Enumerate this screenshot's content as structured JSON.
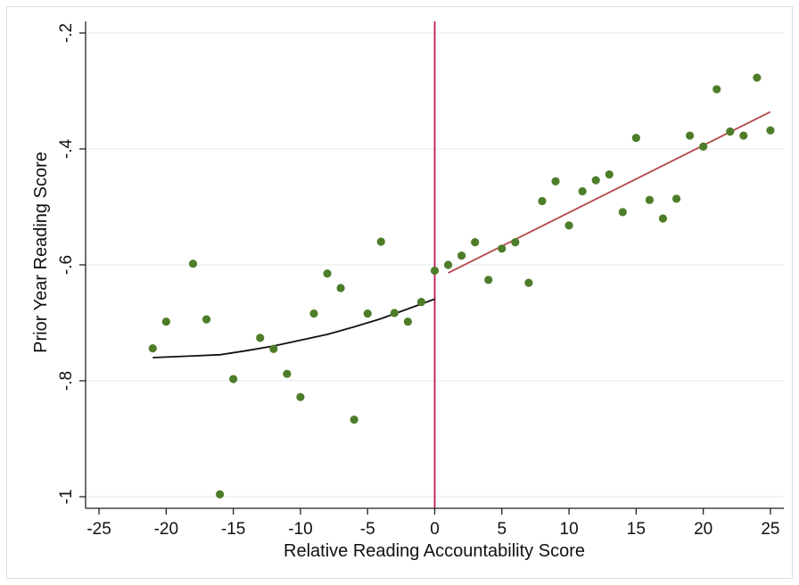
{
  "chart_data": {
    "type": "scatter",
    "title": "",
    "xlabel": "Relative Reading Accountability Score",
    "ylabel": "Prior Year Reading Score",
    "xlim": [
      -26,
      26
    ],
    "ylim": [
      -1.02,
      -0.18
    ],
    "x_ticks": [
      -25,
      -20,
      -15,
      -10,
      -5,
      0,
      5,
      10,
      15,
      20,
      25
    ],
    "x_tick_labels": [
      "-25",
      "-20",
      "-15",
      "-10",
      "-5",
      "0",
      "5",
      "10",
      "15",
      "20",
      "25"
    ],
    "y_ticks": [
      -1,
      -0.8,
      -0.6,
      -0.4,
      -0.2
    ],
    "y_tick_labels": [
      "-1",
      "-.8",
      "-.6",
      "-.4",
      "-.2"
    ],
    "grid": true,
    "cutoff_x": 0,
    "colors": {
      "points": "#4e7d2a",
      "left_fit": "#111111",
      "right_fit": "#b5464a",
      "cutoff_line": "#c2184b",
      "grid": "#e6eaee",
      "axis": "#222222"
    },
    "series": [
      {
        "type": "scatter",
        "x": [
          -21,
          -20,
          -18,
          -17,
          -16,
          -15,
          -13,
          -12,
          -11,
          -10,
          -9,
          -8,
          -7,
          -6,
          -5,
          -4,
          -3,
          -2,
          -1,
          0,
          1,
          2,
          3,
          4,
          5,
          6,
          7,
          8,
          9,
          10,
          11,
          12,
          13,
          14,
          15,
          16,
          17,
          18,
          19,
          20,
          21,
          22,
          23,
          24,
          25
        ],
        "y": [
          -0.744,
          -0.698,
          -0.598,
          -0.694,
          -0.996,
          -0.797,
          -0.726,
          -0.745,
          -0.788,
          -0.828,
          -0.684,
          -0.615,
          -0.64,
          -0.867,
          -0.684,
          -0.56,
          -0.683,
          -0.698,
          -0.664,
          -0.61,
          -0.6,
          -0.584,
          -0.561,
          -0.626,
          -0.572,
          -0.561,
          -0.631,
          -0.49,
          -0.456,
          -0.532,
          -0.473,
          -0.454,
          -0.444,
          -0.509,
          -0.381,
          -0.488,
          -0.52,
          -0.486,
          -0.377,
          -0.396,
          -0.297,
          -0.37,
          -0.377,
          -0.277,
          -0.368
        ]
      },
      {
        "type": "line",
        "x": [
          -21,
          -18,
          -16,
          -14,
          -12,
          -10,
          -8,
          -6,
          -4,
          -2,
          0
        ],
        "y": [
          -0.76,
          -0.757,
          -0.755,
          -0.748,
          -0.74,
          -0.73,
          -0.72,
          -0.707,
          -0.693,
          -0.676,
          -0.659
        ]
      },
      {
        "type": "line",
        "x": [
          1,
          25
        ],
        "y": [
          -0.614,
          -0.336
        ]
      }
    ]
  }
}
